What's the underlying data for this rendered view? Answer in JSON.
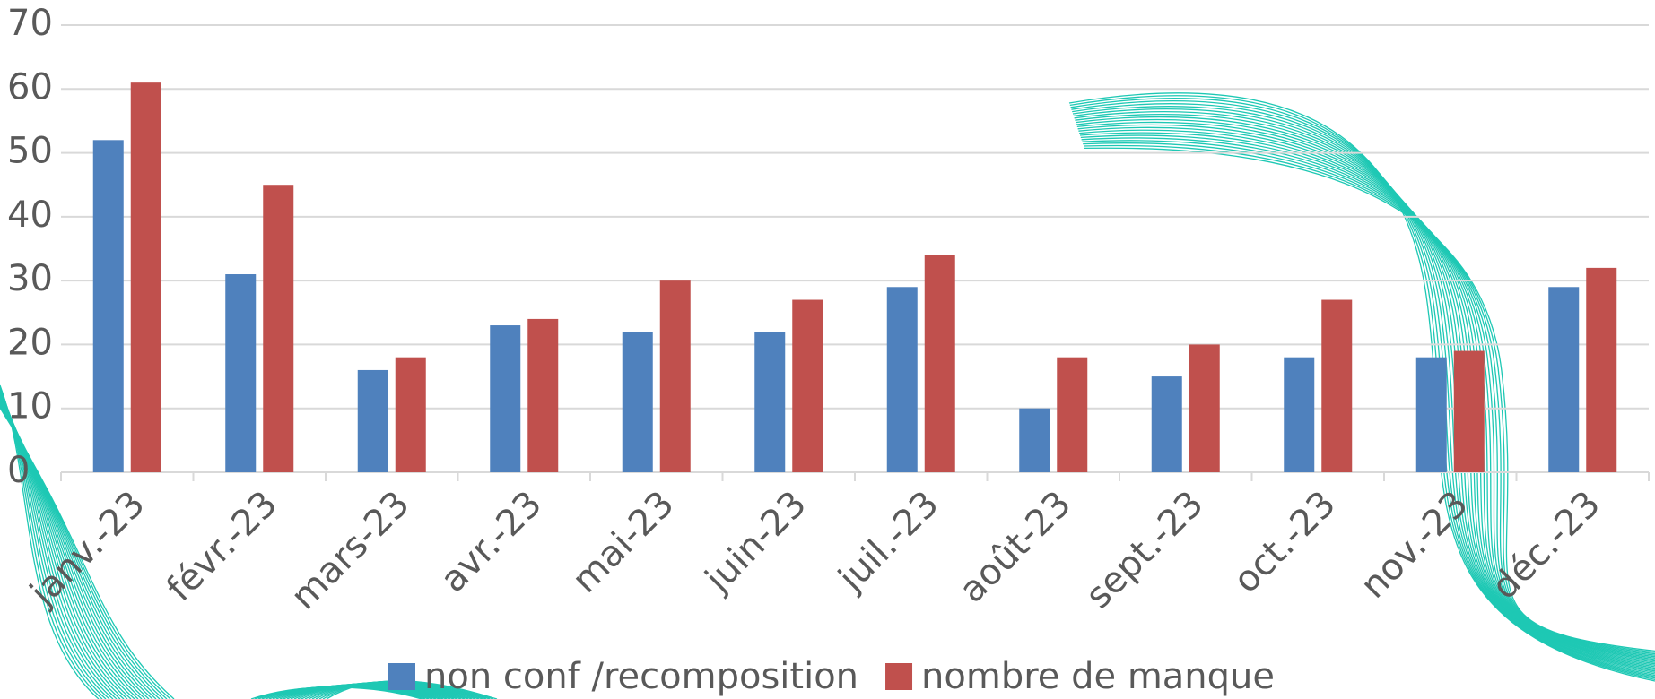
{
  "chart_data": {
    "type": "bar",
    "categories": [
      "janv.-23",
      "févr.-23",
      "mars-23",
      "avr.-23",
      "mai-23",
      "juin-23",
      "juil.-23",
      "août-23",
      "sept.-23",
      "oct.-23",
      "nov.-23",
      "déc.-23"
    ],
    "series": [
      {
        "name": "non conf /recomposition",
        "color": "#4f81bd",
        "values": [
          52,
          31,
          16,
          23,
          22,
          22,
          29,
          10,
          15,
          18,
          18,
          29
        ]
      },
      {
        "name": "nombre de manque",
        "color": "#c0504d",
        "values": [
          61,
          45,
          18,
          24,
          30,
          27,
          34,
          18,
          20,
          27,
          19,
          32
        ]
      }
    ],
    "ylim": [
      0,
      70
    ],
    "yticks": [
      0,
      10,
      20,
      30,
      40,
      50,
      60,
      70
    ],
    "grid": true,
    "legend": "bottom"
  }
}
